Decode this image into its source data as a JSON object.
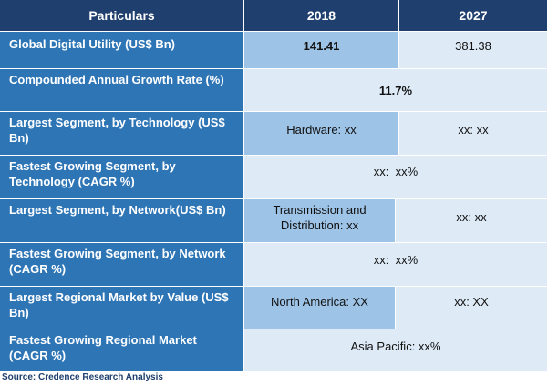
{
  "table": {
    "headers": [
      "Particulars",
      "2018",
      "2027"
    ],
    "rows": [
      {
        "label": "Global Digital Utility (US$ Bn)",
        "v2018": "141.41",
        "v2027": "381.38"
      },
      {
        "label": "Compounded Annual Growth Rate (%)",
        "merged": "11.7%"
      },
      {
        "label": "Largest Segment, by Technology (US$ Bn)",
        "v2018": "Hardware: xx",
        "v2027": "xx: xx"
      },
      {
        "label": "Fastest Growing Segment, by Technology (CAGR %)",
        "merged": "xx:  xx%"
      },
      {
        "label": "Largest Segment, by Network(US$ Bn)",
        "v2018": "Transmission and Distribution: xx",
        "v2027": "xx: xx"
      },
      {
        "label": "Fastest Growing Segment, by Network (CAGR %)",
        "merged": "xx:  xx%"
      },
      {
        "label": "Largest Regional Market by Value (US$ Bn)",
        "v2018": "North America: XX",
        "v2027": "xx: XX"
      },
      {
        "label": "Fastest Growing Regional Market (CAGR %)",
        "merged": "Asia Pacific: xx%"
      }
    ]
  },
  "source": "Source: Credence Research Analysis",
  "colors": {
    "header": "#1f3f6e",
    "label": "#2e75b6",
    "cell_dark": "#9dc3e6",
    "cell_light": "#deebf7"
  }
}
